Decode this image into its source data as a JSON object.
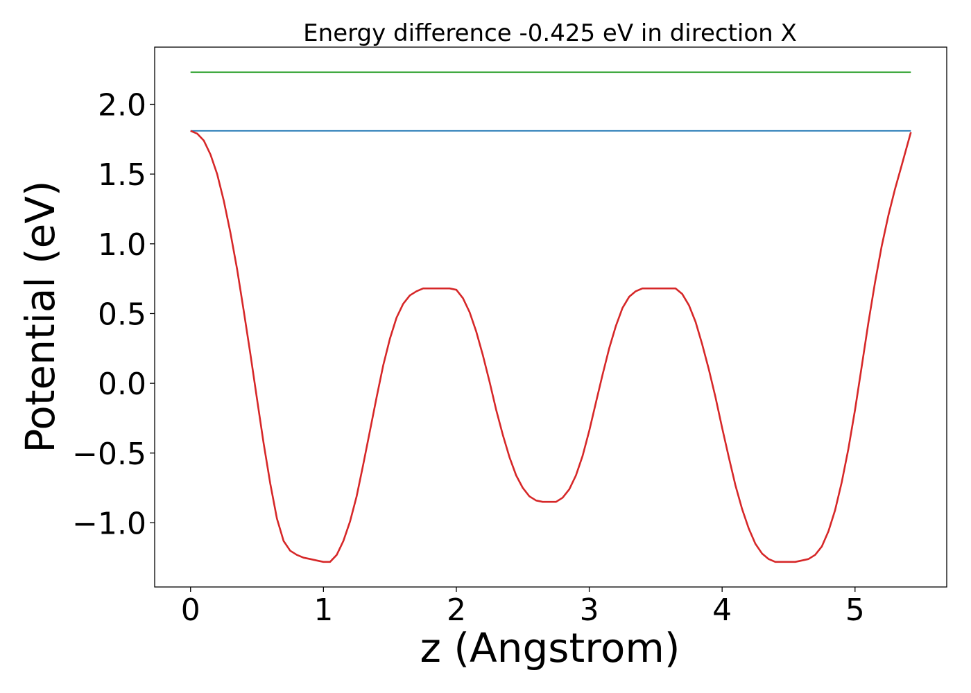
{
  "chart_data": {
    "type": "line",
    "title": "Energy difference -0.425 eV in direction X",
    "xlabel": "z (Angstrom)",
    "ylabel": "Potential (eV)",
    "xlim": [
      -0.27,
      5.69
    ],
    "ylim": [
      -1.46,
      2.41
    ],
    "x_ticks": [
      {
        "value": 0,
        "label": "0"
      },
      {
        "value": 1,
        "label": "1"
      },
      {
        "value": 2,
        "label": "2"
      },
      {
        "value": 3,
        "label": "3"
      },
      {
        "value": 4,
        "label": "4"
      },
      {
        "value": 5,
        "label": "5"
      }
    ],
    "y_ticks": [
      {
        "value": -1.0,
        "label": "−1.0"
      },
      {
        "value": -0.5,
        "label": "−0.5"
      },
      {
        "value": 0.0,
        "label": "0.0"
      },
      {
        "value": 0.5,
        "label": "0.5"
      },
      {
        "value": 1.0,
        "label": "1.0"
      },
      {
        "value": 1.5,
        "label": "1.5"
      },
      {
        "value": 2.0,
        "label": "2.0"
      }
    ],
    "grid": false,
    "legend": false,
    "series": [
      {
        "color": "#2ca02c",
        "x": [
          0,
          5.42
        ],
        "y": [
          2.23,
          2.23
        ]
      },
      {
        "color": "#1f77b4",
        "x": [
          0,
          5.42
        ],
        "y": [
          1.81,
          1.81
        ]
      },
      {
        "color": "#d62728",
        "x": [
          0.0,
          0.05,
          0.1,
          0.15,
          0.2,
          0.25,
          0.3,
          0.35,
          0.4,
          0.45,
          0.5,
          0.55,
          0.6,
          0.65,
          0.7,
          0.75,
          0.8,
          0.85,
          0.9,
          0.95,
          1.0,
          1.05,
          1.1,
          1.15,
          1.2,
          1.25,
          1.3,
          1.35,
          1.4,
          1.45,
          1.5,
          1.55,
          1.6,
          1.65,
          1.7,
          1.75,
          1.8,
          1.85,
          1.9,
          1.95,
          2.0,
          2.05,
          2.1,
          2.15,
          2.2,
          2.25,
          2.3,
          2.35,
          2.4,
          2.45,
          2.5,
          2.55,
          2.6,
          2.65,
          2.7,
          2.75,
          2.8,
          2.85,
          2.9,
          2.95,
          3.0,
          3.05,
          3.1,
          3.15,
          3.2,
          3.25,
          3.3,
          3.35,
          3.4,
          3.45,
          3.5,
          3.55,
          3.6,
          3.65,
          3.7,
          3.75,
          3.8,
          3.85,
          3.9,
          3.95,
          4.0,
          4.05,
          4.1,
          4.15,
          4.2,
          4.25,
          4.3,
          4.35,
          4.4,
          4.45,
          4.5,
          4.55,
          4.6,
          4.65,
          4.7,
          4.75,
          4.8,
          4.85,
          4.9,
          4.95,
          5.0,
          5.05,
          5.1,
          5.15,
          5.2,
          5.25,
          5.3,
          5.35,
          5.42
        ],
        "y": [
          1.81,
          1.79,
          1.74,
          1.64,
          1.5,
          1.31,
          1.08,
          0.82,
          0.52,
          0.21,
          -0.11,
          -0.43,
          -0.72,
          -0.97,
          -1.13,
          -1.2,
          -1.23,
          -1.25,
          -1.26,
          -1.27,
          -1.28,
          -1.28,
          -1.23,
          -1.13,
          -0.99,
          -0.81,
          -0.58,
          -0.34,
          -0.1,
          0.13,
          0.32,
          0.47,
          0.57,
          0.63,
          0.66,
          0.68,
          0.68,
          0.68,
          0.68,
          0.68,
          0.67,
          0.61,
          0.51,
          0.37,
          0.2,
          0.01,
          -0.19,
          -0.37,
          -0.53,
          -0.66,
          -0.75,
          -0.81,
          -0.84,
          -0.85,
          -0.85,
          -0.85,
          -0.82,
          -0.76,
          -0.66,
          -0.52,
          -0.34,
          -0.14,
          0.06,
          0.25,
          0.41,
          0.54,
          0.62,
          0.66,
          0.68,
          0.68,
          0.68,
          0.68,
          0.68,
          0.68,
          0.64,
          0.56,
          0.44,
          0.28,
          0.1,
          -0.1,
          -0.32,
          -0.53,
          -0.73,
          -0.9,
          -1.04,
          -1.15,
          -1.22,
          -1.26,
          -1.28,
          -1.28,
          -1.28,
          -1.28,
          -1.27,
          -1.26,
          -1.23,
          -1.17,
          -1.06,
          -0.91,
          -0.71,
          -0.47,
          -0.19,
          0.12,
          0.43,
          0.72,
          0.98,
          1.2,
          1.39,
          1.56,
          1.8
        ]
      }
    ]
  }
}
